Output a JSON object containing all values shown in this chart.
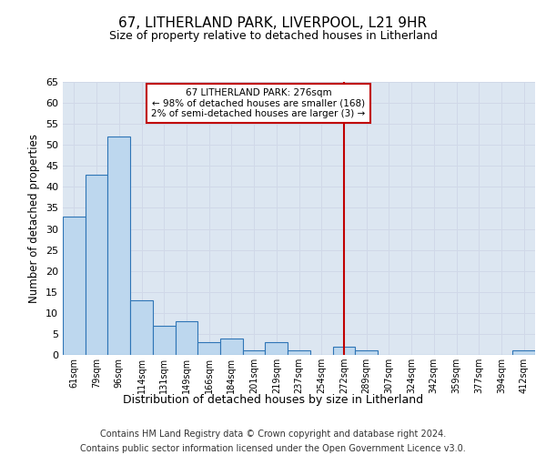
{
  "title": "67, LITHERLAND PARK, LIVERPOOL, L21 9HR",
  "subtitle": "Size of property relative to detached houses in Litherland",
  "xlabel": "Distribution of detached houses by size in Litherland",
  "ylabel": "Number of detached properties",
  "bin_labels": [
    "61sqm",
    "79sqm",
    "96sqm",
    "114sqm",
    "131sqm",
    "149sqm",
    "166sqm",
    "184sqm",
    "201sqm",
    "219sqm",
    "237sqm",
    "254sqm",
    "272sqm",
    "289sqm",
    "307sqm",
    "324sqm",
    "342sqm",
    "359sqm",
    "377sqm",
    "394sqm",
    "412sqm"
  ],
  "bar_heights": [
    33,
    43,
    52,
    13,
    7,
    8,
    3,
    4,
    1,
    3,
    1,
    0,
    2,
    1,
    0,
    0,
    0,
    0,
    0,
    0,
    1
  ],
  "bar_color": "#bdd7ee",
  "bar_edge_color": "#2e75b6",
  "grid_color": "#d0d8e8",
  "background_color": "#dce6f1",
  "vline_x": 12,
  "vline_color": "#c00000",
  "annotation_line1": "67 LITHERLAND PARK: 276sqm",
  "annotation_line2": "← 98% of detached houses are smaller (168)",
  "annotation_line3": "2% of semi-detached houses are larger (3) →",
  "annotation_box_color": "#c00000",
  "footer_line1": "Contains HM Land Registry data © Crown copyright and database right 2024.",
  "footer_line2": "Contains public sector information licensed under the Open Government Licence v3.0.",
  "ylim": [
    0,
    65
  ],
  "yticks": [
    0,
    5,
    10,
    15,
    20,
    25,
    30,
    35,
    40,
    45,
    50,
    55,
    60,
    65
  ]
}
